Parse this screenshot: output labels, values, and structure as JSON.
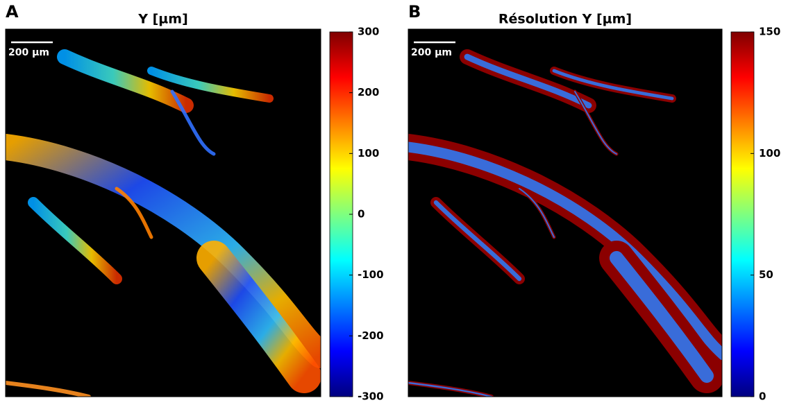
{
  "panels": [
    {
      "letter": "A",
      "title": "Y [µm]",
      "scale_bar": "200 µm",
      "colorbar": {
        "lim": [
          -300,
          300
        ],
        "ticks": [
          300,
          200,
          100,
          0,
          -100,
          -200,
          -300
        ]
      }
    },
    {
      "letter": "B",
      "title": "Résolution Y [µm]",
      "scale_bar": "200 µm",
      "colorbar": {
        "lim": [
          0,
          150
        ],
        "ticks": [
          150,
          100,
          50,
          0
        ]
      }
    }
  ]
}
